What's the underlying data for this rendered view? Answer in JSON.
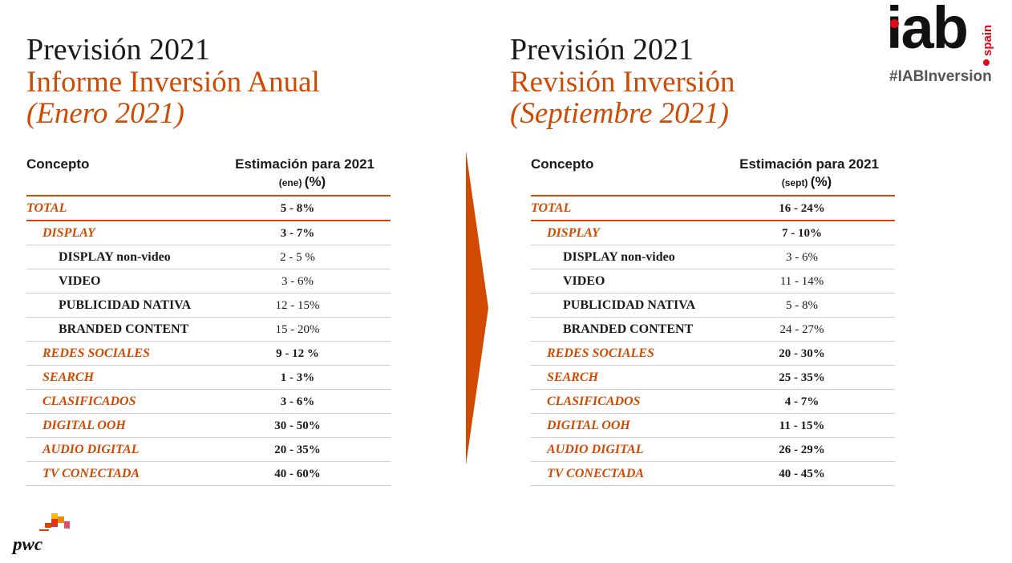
{
  "left": {
    "title": "Previsión 2021",
    "subtitle": "Informe Inversión Anual",
    "date": "(Enero 2021)",
    "header_concept": "Concepto",
    "header_estimate": "Estimación para 2021",
    "header_sub": "(ene)",
    "header_pct": "(%)",
    "rows": [
      {
        "label": "TOTAL",
        "value": "5 - 8%"
      },
      {
        "label": "DISPLAY",
        "value": "3 - 7%"
      },
      {
        "label": "DISPLAY non-video",
        "value": "2 - 5 %"
      },
      {
        "label": "VIDEO",
        "value": "3 - 6%"
      },
      {
        "label": "PUBLICIDAD NATIVA",
        "value": "12 - 15%"
      },
      {
        "label": "BRANDED CONTENT",
        "value": "15 - 20%"
      },
      {
        "label": "REDES SOCIALES",
        "value": "9 - 12 %"
      },
      {
        "label": "SEARCH",
        "value": "1 - 3%"
      },
      {
        "label": "CLASIFICADOS",
        "value": "3 - 6%"
      },
      {
        "label": "DIGITAL OOH",
        "value": "30 - 50%"
      },
      {
        "label": "AUDIO DIGITAL",
        "value": "20 - 35%"
      },
      {
        "label": "TV CONECTADA",
        "value": "40 - 60%"
      }
    ]
  },
  "right": {
    "title": "Previsión 2021",
    "subtitle": "Revisión Inversión",
    "date": "(Septiembre 2021)",
    "header_concept": "Concepto",
    "header_estimate": "Estimación para 2021",
    "header_sub": "(sept)",
    "header_pct": "(%)",
    "rows": [
      {
        "label": "TOTAL",
        "value": "16 - 24%"
      },
      {
        "label": "DISPLAY",
        "value": "7 - 10%"
      },
      {
        "label": "DISPLAY non-video",
        "value": "3 - 6%"
      },
      {
        "label": "VIDEO",
        "value": "11 - 14%"
      },
      {
        "label": "PUBLICIDAD NATIVA",
        "value": "5 - 8%"
      },
      {
        "label": "BRANDED CONTENT",
        "value": "24 - 27%"
      },
      {
        "label": "REDES SOCIALES",
        "value": "20 - 30%"
      },
      {
        "label": "SEARCH",
        "value": "25 - 35%"
      },
      {
        "label": "CLASIFICADOS",
        "value": "4 - 7%"
      },
      {
        "label": "DIGITAL OOH",
        "value": "11 - 15%"
      },
      {
        "label": "AUDIO DIGITAL",
        "value": "26 - 29%"
      },
      {
        "label": "TV CONECTADA",
        "value": "40 - 45%"
      }
    ]
  },
  "logo": {
    "wordmark": "iab",
    "country": "spain",
    "hashtag": "#IABInversion",
    "dot_color": "#e30613"
  },
  "footer": {
    "brand": "pwc"
  },
  "colors": {
    "accent": "#d04a02",
    "text": "#1a1a1a"
  }
}
